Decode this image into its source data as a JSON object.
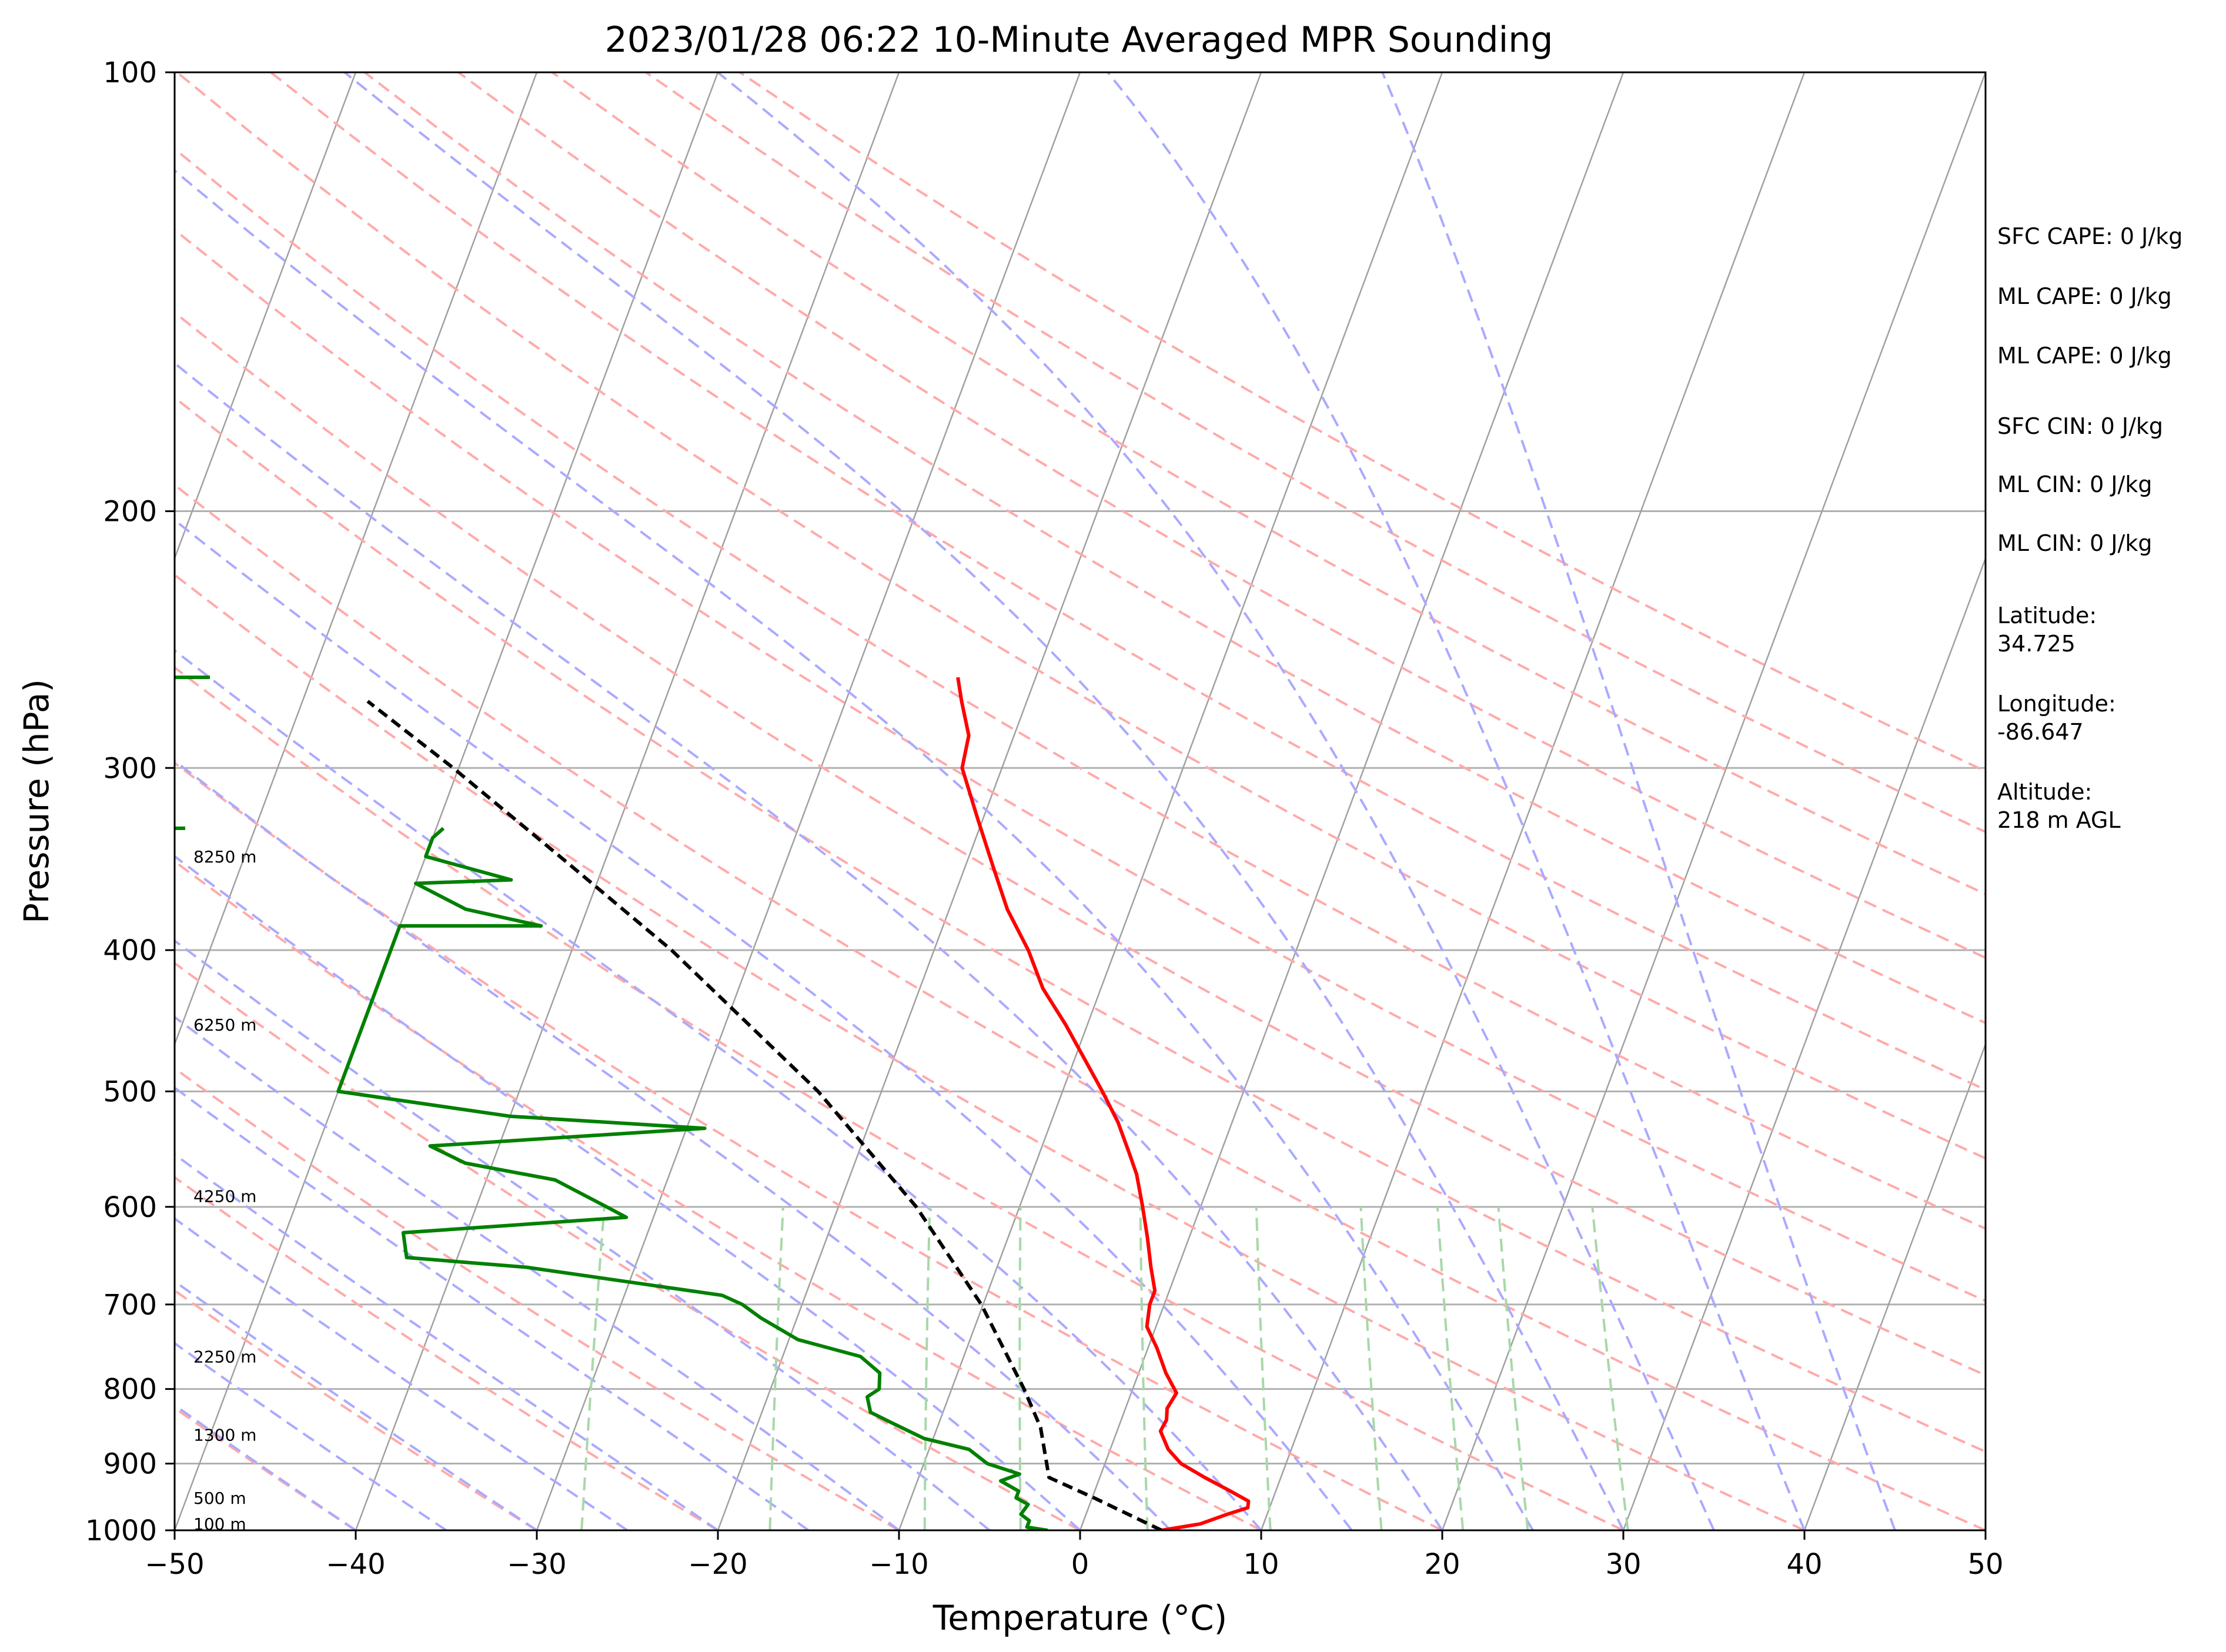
{
  "chart_data": {
    "type": "skew-t",
    "title": "2023/01/28 06:22 10-Minute Averaged MPR Sounding",
    "xlabel": "Temperature (°C)",
    "ylabel": "Pressure (hPa)",
    "xlim": [
      -50,
      50
    ],
    "ylim": [
      1000,
      100
    ],
    "y_scale": "log",
    "x_ticks": [
      "−50",
      "−40",
      "−30",
      "−20",
      "−10",
      "0",
      "10",
      "20",
      "30",
      "40",
      "50"
    ],
    "y_ticks": [
      "100",
      "200",
      "300",
      "400",
      "500",
      "600",
      "700",
      "800",
      "900",
      "1000"
    ],
    "grid": true,
    "colors": {
      "temperature": "#ff0000",
      "dewpoint": "#008000",
      "parcel": "#000000",
      "isotherm": "#a0a0a0",
      "dry_adiabat": "#ffaaaa",
      "moist_adiabat": "#aaaaff",
      "mixing_ratio": "#a8d8a8"
    },
    "series": [
      {
        "role": "temperature",
        "points": [
          {
            "p": 1000,
            "t": 4.5
          },
          {
            "p": 990,
            "t": 6.5
          },
          {
            "p": 975,
            "t": 7.8
          },
          {
            "p": 965,
            "t": 8.8
          },
          {
            "p": 955,
            "t": 8.7
          },
          {
            "p": 940,
            "t": 7.5
          },
          {
            "p": 920,
            "t": 5.8
          },
          {
            "p": 900,
            "t": 4.2
          },
          {
            "p": 880,
            "t": 3.2
          },
          {
            "p": 855,
            "t": 2.4
          },
          {
            "p": 840,
            "t": 2.5
          },
          {
            "p": 825,
            "t": 2.3
          },
          {
            "p": 805,
            "t": 2.5
          },
          {
            "p": 780,
            "t": 1.5
          },
          {
            "p": 750,
            "t": 0.5
          },
          {
            "p": 725,
            "t": -0.5
          },
          {
            "p": 700,
            "t": -0.8
          },
          {
            "p": 685,
            "t": -0.8
          },
          {
            "p": 660,
            "t": -1.5
          },
          {
            "p": 630,
            "t": -2.3
          },
          {
            "p": 600,
            "t": -3.2
          },
          {
            "p": 570,
            "t": -4.2
          },
          {
            "p": 550,
            "t": -5.1
          },
          {
            "p": 525,
            "t": -6.3
          },
          {
            "p": 500,
            "t": -7.8
          },
          {
            "p": 450,
            "t": -11.2
          },
          {
            "p": 425,
            "t": -13.2
          },
          {
            "p": 400,
            "t": -14.8
          },
          {
            "p": 375,
            "t": -16.8
          },
          {
            "p": 350,
            "t": -18.5
          },
          {
            "p": 325,
            "t": -20.3
          },
          {
            "p": 300,
            "t": -22.2
          },
          {
            "p": 285,
            "t": -22.5
          },
          {
            "p": 270,
            "t": -23.6
          },
          {
            "p": 260,
            "t": -24.3
          }
        ]
      },
      {
        "role": "dewpoint",
        "points": [
          {
            "p": 1000,
            "t": -1.8
          },
          {
            "p": 995,
            "t": -3
          },
          {
            "p": 985,
            "t": -3
          },
          {
            "p": 975,
            "t": -3.6
          },
          {
            "p": 960,
            "t": -3.4
          },
          {
            "p": 950,
            "t": -4.2
          },
          {
            "p": 940,
            "t": -4.2
          },
          {
            "p": 925,
            "t": -5.4
          },
          {
            "p": 915,
            "t": -4.5
          },
          {
            "p": 900,
            "t": -6.5
          },
          {
            "p": 880,
            "t": -7.8
          },
          {
            "p": 865,
            "t": -10.5
          },
          {
            "p": 845,
            "t": -12.5
          },
          {
            "p": 830,
            "t": -14
          },
          {
            "p": 810,
            "t": -14.5
          },
          {
            "p": 800,
            "t": -14
          },
          {
            "p": 780,
            "t": -14.3
          },
          {
            "p": 760,
            "t": -15.7
          },
          {
            "p": 740,
            "t": -19.5
          },
          {
            "p": 715,
            "t": -22
          },
          {
            "p": 700,
            "t": -23.3
          },
          {
            "p": 690,
            "t": -24.6
          },
          {
            "p": 660,
            "t": -36
          },
          {
            "p": 650,
            "t": -42.8
          },
          {
            "p": 625,
            "t": -43.5
          },
          {
            "p": 610,
            "t": -31.5
          },
          {
            "p": 600,
            "t": -32.8
          },
          {
            "p": 575,
            "t": -36.2
          },
          {
            "p": 560,
            "t": -41.5
          },
          {
            "p": 545,
            "t": -43.8
          },
          {
            "p": 530,
            "t": -29
          },
          {
            "p": 520,
            "t": -40
          },
          {
            "p": 500,
            "t": -50
          },
          {
            "p": 385,
            "t": -50
          },
          {
            "p": 385,
            "t": -42.2
          },
          {
            "p": 375,
            "t": -46.7
          },
          {
            "p": 360,
            "t": -50
          },
          {
            "p": 358,
            "t": -44.8
          },
          {
            "p": 345,
            "t": -50
          },
          {
            "p": 335,
            "t": -50
          },
          {
            "p": 330,
            "t": -49.6
          }
        ]
      },
      {
        "role": "parcel",
        "points": [
          {
            "p": 1000,
            "t": 4.5
          },
          {
            "p": 950,
            "t": 0.1
          },
          {
            "p": 920,
            "t": -2.8
          },
          {
            "p": 850,
            "t": -4.3
          },
          {
            "p": 800,
            "t": -6
          },
          {
            "p": 700,
            "t": -10.1
          },
          {
            "p": 600,
            "t": -15.7
          },
          {
            "p": 500,
            "t": -23.5
          },
          {
            "p": 400,
            "t": -34.5
          },
          {
            "p": 350,
            "t": -41.8
          },
          {
            "p": 300,
            "t": -50.3
          },
          {
            "p": 270,
            "t": -56.4
          }
        ]
      }
    ],
    "wind_barbs": [
      {
        "p": 260,
        "label": ""
      },
      {
        "p": 330,
        "label": ""
      }
    ],
    "height_labels": [
      {
        "p": 345,
        "text": "8250 m"
      },
      {
        "p": 450,
        "text": "6250 m"
      },
      {
        "p": 590,
        "text": "4250 m"
      },
      {
        "p": 760,
        "text": "2250 m"
      },
      {
        "p": 860,
        "text": "1300 m"
      },
      {
        "p": 950,
        "text": "500 m"
      },
      {
        "p": 990,
        "text": "100 m"
      }
    ],
    "isotherms_c": [
      -130,
      -120,
      -110,
      -100,
      -90,
      -80,
      -70,
      -60,
      -50,
      -40,
      -30,
      -20,
      -10,
      0,
      10,
      20,
      30,
      40,
      50
    ],
    "dry_adiabats_c_at_1000": [
      -50,
      -40,
      -30,
      -20,
      -10,
      0,
      10,
      20,
      30,
      40,
      50,
      60,
      70,
      80,
      90,
      100,
      110,
      120,
      130,
      140,
      150,
      160
    ],
    "moist_adiabats_c_at_1000": [
      -40,
      -35,
      -30,
      -25,
      -20,
      -15,
      -10,
      -5,
      0,
      5,
      10,
      15,
      20,
      25,
      30,
      35,
      40,
      45
    ],
    "mixing_ratios_gkg": [
      0.4,
      1,
      2,
      3,
      5,
      8,
      12,
      16,
      20,
      28
    ]
  },
  "side_panel": {
    "sfc_cape": "SFC CAPE: 0 J/kg",
    "ml_cape_1": "ML CAPE: 0 J/kg",
    "ml_cape_2": "ML CAPE: 0 J/kg",
    "sfc_cin": "SFC CIN: 0 J/kg",
    "ml_cin_1": "ML CIN: 0 J/kg",
    "ml_cin_2": "ML CIN: 0 J/kg",
    "latitude_label": "Latitude:",
    "latitude_value": "34.725",
    "longitude_label": "Longitude:",
    "longitude_value": "-86.647",
    "altitude_label": "Altitude:",
    "altitude_value": "218 m AGL"
  }
}
